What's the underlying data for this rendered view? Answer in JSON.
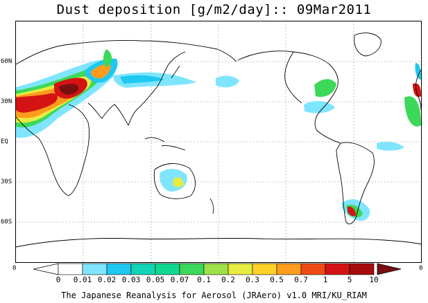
{
  "title": "Dust deposition [g/m2/day]:: 09Mar2011",
  "latitude_labels": [
    "60N",
    "30N",
    "EQ",
    "30S",
    "60S"
  ],
  "corner_labels": {
    "left": "0",
    "right": "0"
  },
  "colorbar": {
    "labels": [
      "0",
      "0.01",
      "0.02",
      "0.03",
      "0.05",
      "0.07",
      "0.1",
      "0.2",
      "0.3",
      "0.5",
      "0.7",
      "1",
      "5",
      "10"
    ],
    "colors": [
      "#ffffff",
      "#ffffff",
      "#7fe5ff",
      "#1ec8f0",
      "#10d4b4",
      "#10d890",
      "#3cd85a",
      "#9fe04a",
      "#e6ec40",
      "#ffd22a",
      "#ff9c1e",
      "#f04a14",
      "#d41414",
      "#a60c0c",
      "#781010"
    ]
  },
  "footer": "The Japanese Reanalysis for Aerosol (JRAero) v1.0 MRI/KU_RIAM"
}
